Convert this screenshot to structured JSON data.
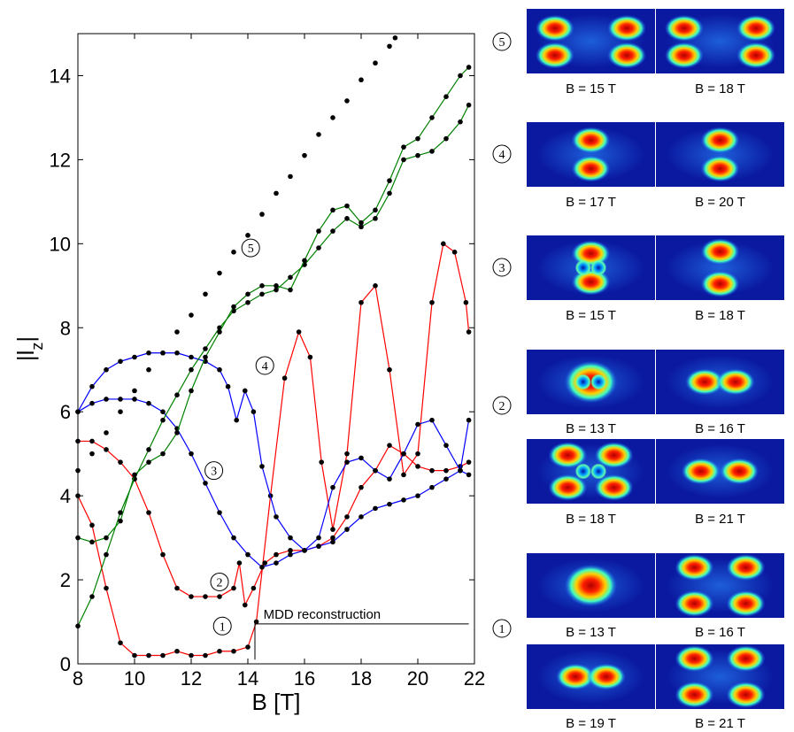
{
  "chart_data": {
    "type": "line",
    "xlabel": "B  [T]",
    "ylabel": "|l_z|",
    "xlim": [
      8,
      22
    ],
    "ylim": [
      0,
      15
    ],
    "xticks": [
      8,
      10,
      12,
      14,
      16,
      18,
      20,
      22
    ],
    "yticks": [
      0,
      2,
      4,
      6,
      8,
      10,
      12,
      14
    ],
    "grid": false,
    "annotation": "MDD reconstruction",
    "curve_labels": [
      "1",
      "2",
      "3",
      "4",
      "5"
    ],
    "series": [
      {
        "color": "#000000",
        "style": "dots",
        "x": [
          8,
          8.5,
          9,
          9.5,
          10,
          10.5,
          11,
          11.5,
          12,
          12.5,
          13,
          13.5,
          14,
          14.5,
          15,
          15.5,
          16,
          16.5,
          17,
          17.5,
          18,
          18.5,
          19,
          19.2
        ],
        "y": [
          4.6,
          5.0,
          5.5,
          6.0,
          6.5,
          7.0,
          7.4,
          7.9,
          8.3,
          8.8,
          9.3,
          9.8,
          10.2,
          10.7,
          11.2,
          11.6,
          12.1,
          12.6,
          13.0,
          13.4,
          13.9,
          14.3,
          14.7,
          14.9
        ]
      },
      {
        "color": "#ff0000",
        "style": "line+dots",
        "x": [
          8,
          8.5,
          9,
          9.5,
          10,
          10.5,
          11,
          11.5,
          12,
          12.5,
          13,
          13.5,
          14,
          14.3,
          14.8,
          15.3,
          15.8,
          16.2,
          16.6,
          17,
          17.5,
          18,
          18.5,
          19,
          19.5,
          20,
          20.5,
          20.9,
          21.3,
          21.7,
          21.8
        ],
        "y": [
          4.0,
          3.3,
          1.8,
          0.5,
          0.2,
          0.2,
          0.2,
          0.3,
          0.2,
          0.2,
          0.3,
          0.3,
          0.4,
          1.0,
          4.0,
          6.8,
          7.9,
          7.3,
          4.8,
          3.2,
          5.0,
          8.6,
          9.0,
          7.0,
          4.5,
          5.0,
          8.6,
          10.0,
          9.8,
          8.6,
          7.9
        ]
      },
      {
        "color": "#ff0000",
        "style": "line+dots",
        "x": [
          8,
          8.5,
          9,
          9.5,
          10,
          10.5,
          11,
          11.5,
          12,
          12.5,
          13,
          13.5,
          13.7,
          13.9,
          14.2,
          14.6,
          15,
          15.5,
          16,
          16.5,
          17,
          17.5,
          18,
          18.5,
          19,
          19.5,
          20,
          20.5,
          21,
          21.5,
          21.8
        ],
        "y": [
          5.3,
          5.3,
          5.1,
          4.8,
          4.4,
          3.6,
          2.6,
          1.8,
          1.6,
          1.6,
          1.6,
          1.8,
          2.4,
          1.4,
          1.8,
          2.4,
          2.6,
          2.7,
          2.7,
          2.8,
          3.0,
          3.5,
          4.2,
          4.6,
          5.2,
          5.0,
          4.7,
          4.6,
          4.6,
          4.7,
          4.8
        ]
      },
      {
        "color": "#0000ff",
        "style": "line+dots",
        "x": [
          8,
          8.5,
          9,
          9.5,
          10,
          10.5,
          11,
          11.5,
          12,
          12.5,
          13,
          13.5,
          14,
          14.5,
          15,
          15.5,
          16,
          16.5,
          17,
          17.5,
          18,
          18.5,
          19,
          19.5,
          20,
          20.5,
          21,
          21.5,
          21.8
        ],
        "y": [
          6.0,
          6.2,
          6.3,
          6.3,
          6.3,
          6.2,
          6.0,
          5.6,
          5.0,
          4.3,
          3.6,
          3.0,
          2.6,
          2.3,
          2.4,
          2.6,
          2.7,
          3.0,
          4.2,
          4.8,
          4.9,
          4.6,
          4.4,
          5.0,
          5.7,
          5.8,
          5.2,
          4.6,
          5.8
        ]
      },
      {
        "color": "#0000ff",
        "style": "line+dots",
        "x": [
          8,
          8.5,
          9,
          9.5,
          10,
          10.5,
          11,
          11.5,
          12,
          12.5,
          13,
          13.3,
          13.6,
          13.9,
          14.2,
          14.5,
          15,
          15.5,
          16,
          16.5,
          17,
          17.5,
          18,
          18.5,
          19,
          19.5,
          20,
          20.5,
          21,
          21.5,
          21.8
        ],
        "y": [
          6.0,
          6.6,
          7.0,
          7.2,
          7.3,
          7.4,
          7.4,
          7.4,
          7.3,
          7.2,
          7.0,
          6.6,
          5.8,
          6.5,
          6.0,
          4.7,
          3.5,
          3.0,
          2.7,
          2.8,
          2.9,
          3.2,
          3.5,
          3.7,
          3.8,
          3.9,
          4.0,
          4.2,
          4.4,
          4.6,
          4.5
        ]
      },
      {
        "color": "#008000",
        "style": "line+dots",
        "x": [
          8,
          8.5,
          9,
          9.5,
          10,
          10.5,
          11,
          11.5,
          12,
          12.5,
          13,
          13.5,
          14,
          14.5,
          15,
          15.5,
          16,
          16.5,
          17,
          17.5,
          18,
          18.5,
          19,
          19.5,
          20,
          20.5,
          21,
          21.5,
          21.8
        ],
        "y": [
          0.9,
          1.6,
          2.6,
          3.6,
          4.4,
          5.1,
          5.8,
          6.4,
          7.0,
          7.5,
          8.0,
          8.4,
          8.6,
          8.8,
          8.9,
          9.2,
          9.5,
          9.9,
          10.3,
          10.6,
          10.4,
          10.6,
          11.2,
          12.0,
          12.1,
          12.2,
          12.5,
          12.9,
          13.3
        ]
      },
      {
        "color": "#008000",
        "style": "line+dots",
        "x": [
          8,
          8.5,
          9,
          9.5,
          10,
          10.5,
          11,
          11.5,
          12,
          12.5,
          13,
          13.5,
          14,
          14.5,
          15,
          15.5,
          16,
          16.5,
          17,
          17.5,
          18,
          18.5,
          19,
          19.5,
          20,
          20.5,
          21,
          21.5,
          21.8
        ],
        "y": [
          3.0,
          2.9,
          3.0,
          3.4,
          4.5,
          4.8,
          5.0,
          5.5,
          6.5,
          7.3,
          7.9,
          8.5,
          8.8,
          9.0,
          9.0,
          8.9,
          9.6,
          10.3,
          10.8,
          10.9,
          10.5,
          10.8,
          11.5,
          12.3,
          12.5,
          13.0,
          13.5,
          14.0,
          14.2
        ]
      }
    ],
    "label_positions": [
      {
        "label": "1",
        "x": 13.1,
        "y": 0.9
      },
      {
        "label": "2",
        "x": 13.0,
        "y": 1.95
      },
      {
        "label": "3",
        "x": 12.8,
        "y": 4.6
      },
      {
        "label": "4",
        "x": 14.6,
        "y": 7.1
      },
      {
        "label": "5",
        "x": 14.1,
        "y": 9.9
      }
    ]
  },
  "panels": [
    {
      "group": "5",
      "left_caption": "B = 15 T",
      "right_caption": "B = 18 T"
    },
    {
      "group": "4",
      "left_caption": "B = 17 T",
      "right_caption": "B = 20 T"
    },
    {
      "group": "3",
      "left_caption": "B = 15 T",
      "right_caption": "B = 18 T"
    },
    {
      "group": "2",
      "left_caption": "B = 13 T",
      "right_caption": "B = 16 T"
    },
    {
      "group": "2",
      "left_caption": "B = 18 T",
      "right_caption": "B = 21 T"
    },
    {
      "group": "1",
      "left_caption": "B = 13 T",
      "right_caption": "B = 16 T"
    },
    {
      "group": "1",
      "left_caption": "B = 19 T",
      "right_caption": "B = 21 T"
    }
  ],
  "colors": {
    "axis": "#000000",
    "red": "#ff0000",
    "blue": "#0000ff",
    "green": "#008000",
    "panel_bg": "#0a19a0"
  }
}
